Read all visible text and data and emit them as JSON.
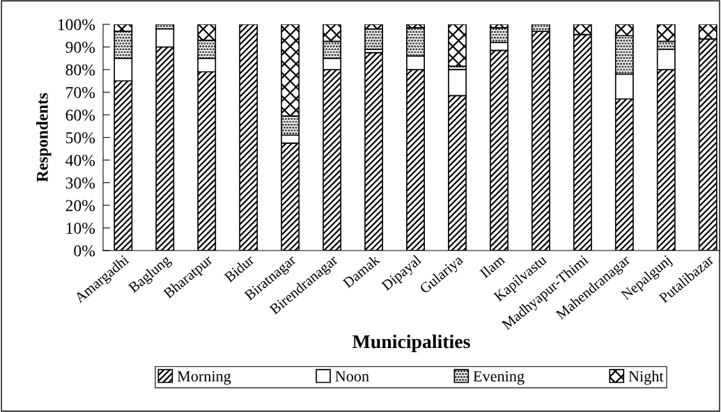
{
  "chart_data": {
    "type": "bar",
    "stacked": true,
    "xlabel": "Municipalities",
    "ylabel": "Respondents",
    "categories": [
      "Amargadhi",
      "Baglung",
      "Bharatpur",
      "Bidur",
      "Biratnagar",
      "Birendranagar",
      "Damak",
      "Dipayal",
      "Gulariya",
      "Ilam",
      "Kapilvastu",
      "Madhyapur-Thimi",
      "Mahendranagar",
      "Nepalgunj",
      "Putalibazar"
    ],
    "series": [
      {
        "name": "Morning",
        "color": "#000000",
        "values": [
          75,
          90,
          79,
          100,
          47.5,
          80,
          87.5,
          80,
          68.5,
          88.5,
          97,
          95.5,
          67,
          80,
          93.5
        ]
      },
      {
        "name": "Noon",
        "color": "#ffffff",
        "values": [
          10,
          8,
          6,
          0,
          3.5,
          5,
          1.5,
          6,
          11.5,
          3.5,
          0,
          0,
          11,
          9,
          0
        ]
      },
      {
        "name": "Evening",
        "color": "#000000",
        "values": [
          12,
          2,
          8,
          0,
          8.5,
          7.5,
          9,
          12.5,
          1.5,
          6.5,
          3,
          0,
          17,
          3.5,
          0
        ]
      },
      {
        "name": "Night",
        "color": "#000000",
        "values": [
          3,
          0,
          7,
          0,
          40.5,
          7.5,
          2,
          1.5,
          18.5,
          1.5,
          0,
          4.5,
          5,
          7.5,
          6.5
        ]
      }
    ],
    "ylim": [
      0,
      100
    ],
    "yticks": [
      {
        "value": 0,
        "label": "0%"
      },
      {
        "value": 10,
        "label": "10%"
      },
      {
        "value": 20,
        "label": "20%"
      },
      {
        "value": 30,
        "label": "30%"
      },
      {
        "value": 40,
        "label": "40%"
      },
      {
        "value": 50,
        "label": "50%"
      },
      {
        "value": 60,
        "label": "60%"
      },
      {
        "value": 70,
        "label": "70%"
      },
      {
        "value": 80,
        "label": "80%"
      },
      {
        "value": 90,
        "label": "90%"
      },
      {
        "value": 100,
        "label": "100%"
      }
    ],
    "grid": false,
    "legend": "bottom"
  }
}
